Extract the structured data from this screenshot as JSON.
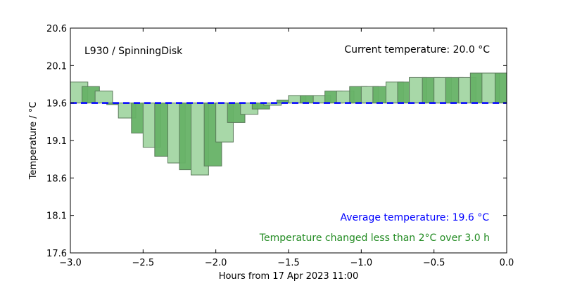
{
  "chart_data": {
    "type": "bar",
    "title": "",
    "xlabel": "Hours from 17 Apr 2023 11:00",
    "ylabel": "Temperature / °C",
    "xlim": [
      -3.0,
      0.0
    ],
    "ylim": [
      17.6,
      20.6
    ],
    "xticks": [
      -3.0,
      -2.5,
      -2.0,
      -1.5,
      -1.0,
      -0.5,
      0.0
    ],
    "xtick_labels": [
      "−3.0",
      "−2.5",
      "−2.0",
      "−1.5",
      "−1.0",
      "−0.5",
      "0.0"
    ],
    "yticks": [
      17.6,
      18.1,
      18.6,
      19.1,
      19.6,
      20.1,
      20.6
    ],
    "ytick_labels": [
      "17.6",
      "18.1",
      "18.6",
      "19.1",
      "19.6",
      "20.1",
      "20.6"
    ],
    "grid": false,
    "baseline": 19.6,
    "average": 19.6,
    "series": [
      {
        "values": [
          [
            -3.0,
            -2.88,
            19.88
          ],
          [
            -2.92,
            -2.8,
            19.82
          ],
          [
            -2.83,
            -2.71,
            19.76
          ],
          [
            -2.75,
            -2.63,
            19.58
          ],
          [
            -2.67,
            -2.55,
            19.4
          ],
          [
            -2.58,
            -2.46,
            19.2
          ],
          [
            -2.5,
            -2.38,
            19.01
          ],
          [
            -2.42,
            -2.3,
            18.89
          ],
          [
            -2.33,
            -2.21,
            18.8
          ],
          [
            -2.25,
            -2.13,
            18.71
          ],
          [
            -2.17,
            -2.05,
            18.64
          ],
          [
            -2.08,
            -1.96,
            18.76
          ],
          [
            -2.0,
            -1.88,
            19.08
          ],
          [
            -1.92,
            -1.8,
            19.34
          ],
          [
            -1.83,
            -1.71,
            19.45
          ],
          [
            -1.75,
            -1.63,
            19.52
          ],
          [
            -1.67,
            -1.55,
            19.57
          ],
          [
            -1.58,
            -1.46,
            19.64
          ],
          [
            -1.5,
            -1.38,
            19.7
          ],
          [
            -1.42,
            -1.3,
            19.7
          ],
          [
            -1.33,
            -1.21,
            19.7
          ],
          [
            -1.25,
            -1.13,
            19.76
          ],
          [
            -1.17,
            -1.05,
            19.76
          ],
          [
            -1.08,
            -0.96,
            19.82
          ],
          [
            -1.0,
            -0.88,
            19.82
          ],
          [
            -0.92,
            -0.8,
            19.82
          ],
          [
            -0.83,
            -0.71,
            19.88
          ],
          [
            -0.75,
            -0.63,
            19.88
          ],
          [
            -0.67,
            -0.55,
            19.94
          ],
          [
            -0.58,
            -0.46,
            19.94
          ],
          [
            -0.5,
            -0.38,
            19.94
          ],
          [
            -0.42,
            -0.3,
            19.94
          ],
          [
            -0.33,
            -0.21,
            19.94
          ],
          [
            -0.25,
            -0.13,
            20.0
          ],
          [
            -0.17,
            -0.05,
            20.0
          ],
          [
            -0.08,
            0.0,
            20.0
          ]
        ],
        "fill_color": "#a8d8a8",
        "dark_fill_color": "#66b266",
        "edge_color": "#5a7a5a"
      }
    ]
  },
  "annotations": {
    "location": "L930 / SpinningDisk",
    "current_temperature": "Current temperature: 20.0 °C",
    "average_temperature": "Average temperature: 19.6 °C",
    "change_note": "Temperature changed less than 2°C over 3.0 h"
  },
  "colors": {
    "average_line": "#0000ff",
    "average_text": "#0000ff",
    "change_text": "#228b22"
  }
}
